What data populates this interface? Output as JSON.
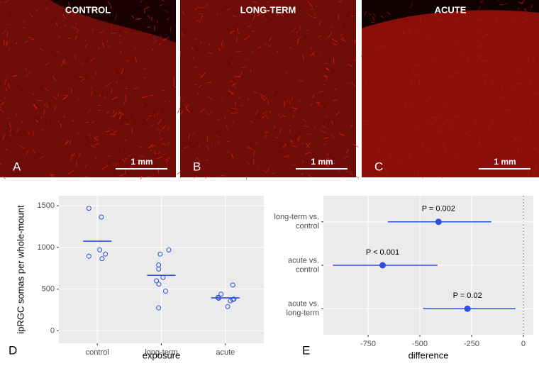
{
  "panels": [
    {
      "title": "CONTROL",
      "letter": "A",
      "scale": "1 mm"
    },
    {
      "title": "LONG-TERM",
      "letter": "B",
      "scale": "1 mm"
    },
    {
      "title": "ACUTE",
      "letter": "C",
      "scale": "1 mm"
    }
  ],
  "chart_data": [
    {
      "type": "strip",
      "letter": "D",
      "x_label": "exposure",
      "y_label": "ipRGC somas per whole-mount",
      "categories": [
        "control",
        "long-term",
        "acute"
      ],
      "points": [
        [
          1470,
          1365,
          970,
          920,
          895,
          865
        ],
        [
          970,
          920,
          790,
          740,
          640,
          600,
          560,
          475,
          275
        ],
        [
          550,
          440,
          400,
          390,
          380,
          375,
          360,
          290
        ]
      ],
      "means": [
        1075,
        665,
        395
      ],
      "color": "#2a4fe0",
      "ylim": [
        -150,
        1620
      ],
      "yticks": [
        0,
        500,
        1000,
        1500
      ],
      "grid": true
    },
    {
      "type": "forest",
      "letter": "E",
      "x_label": "difference",
      "categories": [
        [
          "long-term vs.",
          "control"
        ],
        [
          "acute vs.",
          "control"
        ],
        [
          "acute vs.",
          "long-term"
        ]
      ],
      "values": [
        -410,
        -680,
        -270
      ],
      "lower": [
        -655,
        -920,
        -485
      ],
      "upper": [
        -155,
        -415,
        -38
      ],
      "annotations": [
        "P = 0.002",
        "P < 0.001",
        "P = 0.02"
      ],
      "color": "#2a4fe0",
      "xlim": [
        -966,
        48
      ],
      "xticks": [
        -750,
        -500,
        -250,
        0
      ],
      "reference": 0,
      "grid": true
    }
  ]
}
